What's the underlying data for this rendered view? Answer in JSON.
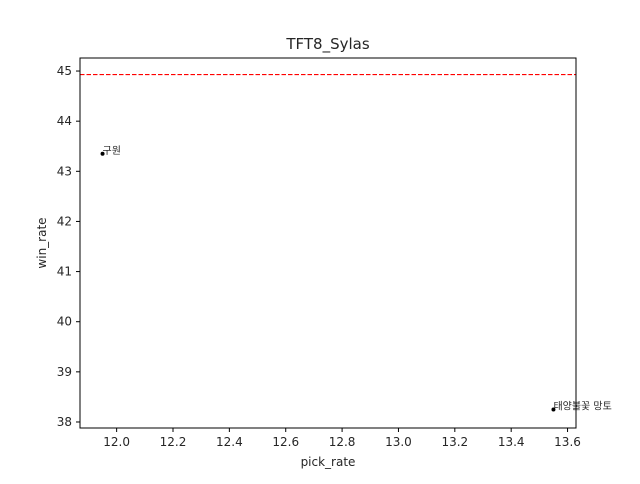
{
  "chart_data": {
    "type": "scatter",
    "title": "TFT8_Sylas",
    "xlabel": "pick_rate",
    "ylabel": "win_rate",
    "xlim": [
      11.87,
      13.63
    ],
    "ylim": [
      37.88,
      45.26
    ],
    "xticks": [
      "12.0",
      "12.2",
      "12.4",
      "12.6",
      "12.8",
      "13.0",
      "13.2",
      "13.4",
      "13.6"
    ],
    "yticks": [
      "38",
      "39",
      "40",
      "41",
      "42",
      "43",
      "44",
      "45"
    ],
    "points": [
      {
        "label": "구원",
        "x": 11.95,
        "y": 43.35
      },
      {
        "label": "태양불꽃 망토",
        "x": 13.55,
        "y": 38.25
      }
    ],
    "reference_line": {
      "y": 44.93,
      "color": "#ff0000",
      "style": "dashed"
    },
    "grid": false,
    "point_color": "#000000"
  }
}
